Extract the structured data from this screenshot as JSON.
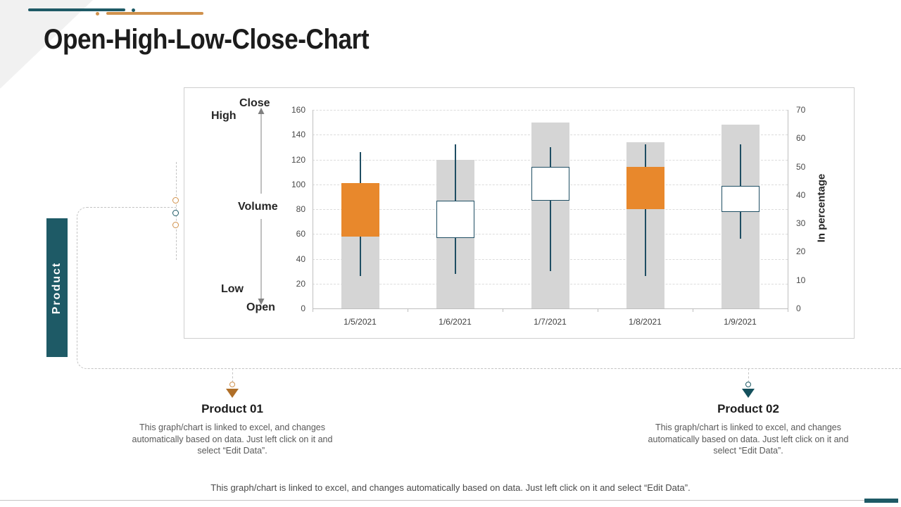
{
  "slide": {
    "title": "Open-High-Low-Close-Chart",
    "product_label": "Product"
  },
  "colors": {
    "teal": "#1E5A66",
    "teal_dark": "#14505C",
    "orange": "#E8882C",
    "orange_soft": "#D0914C",
    "orange_dark": "#B06F28",
    "candle_stick": "#1F4E63",
    "volume_bar": "#D5D5D5",
    "grid_line": "#DCDCDC",
    "axis_line": "#BFBFBF",
    "dashed_line": "#C3C3C3",
    "text_gray": "#595959",
    "frame_border": "#CFCFCF",
    "corner_gray": "#F1F1F1",
    "footer_line": "#C4C4C4"
  },
  "chart_data": {
    "type": "candlestick",
    "categories": [
      "1/5/2021",
      "1/6/2021",
      "1/7/2021",
      "1/8/2021",
      "1/9/2021"
    ],
    "series": [
      {
        "name": "Volume",
        "render": "bar",
        "axis": "left",
        "values": [
          58,
          120,
          150,
          134,
          148
        ]
      },
      {
        "name": "Open",
        "values": [
          101,
          57,
          87,
          114,
          78
        ]
      },
      {
        "name": "High",
        "values": [
          126,
          132,
          130,
          132,
          132
        ]
      },
      {
        "name": "Low",
        "values": [
          26,
          28,
          30,
          26,
          56
        ]
      },
      {
        "name": "Close",
        "values": [
          58,
          87,
          114,
          80,
          99
        ]
      }
    ],
    "left_axis": {
      "min": 0,
      "max": 160,
      "step": 20,
      "ticks": [
        0,
        20,
        40,
        60,
        80,
        100,
        120,
        140,
        160
      ]
    },
    "right_axis": {
      "min": 0,
      "max": 70,
      "step": 10,
      "ticks": [
        0,
        10,
        20,
        30,
        40,
        50,
        60,
        70
      ],
      "label": "In percentage"
    },
    "legend_labels": {
      "close": "Close",
      "high": "High",
      "volume": "Volume",
      "low": "Low",
      "open": "Open"
    },
    "grid": "horizontal-dashed",
    "up_style": "white body with dark outline",
    "down_style": "orange body"
  },
  "callouts": [
    {
      "title": "Product 01",
      "body": "This graph/chart is linked to excel, and changes automatically based on data. Just left click on it and select “Edit Data”.",
      "marker_color": "#B06F28",
      "circle_color": "#D0914C"
    },
    {
      "title": "Product 02",
      "body": "This graph/chart is linked to excel, and changes automatically based on data. Just left click on it and select “Edit Data”.",
      "marker_color": "#14505C",
      "circle_color": "#1E5A66"
    }
  ],
  "footer": {
    "note": "This graph/chart is linked to excel, and changes automatically based on data. Just left click on it and select “Edit Data”."
  }
}
